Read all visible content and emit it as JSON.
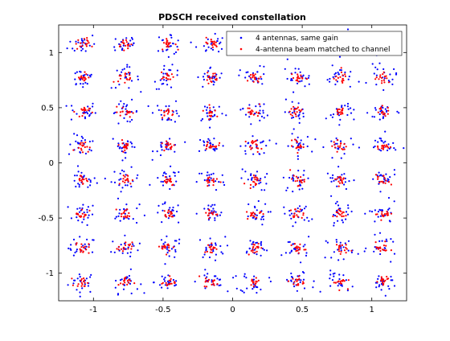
{
  "chart_data": {
    "type": "scatter",
    "title": "PDSCH received constellation",
    "xlabel": "",
    "ylabel": "",
    "xlim": [
      -1.25,
      1.25
    ],
    "ylim": [
      -1.25,
      1.25
    ],
    "xticks": [
      -1,
      -0.5,
      0,
      0.5,
      1
    ],
    "yticks": [
      -1,
      -0.5,
      0,
      0.5,
      1
    ],
    "xtick_labels": [
      "-1",
      "-0.5",
      "0",
      "0.5",
      "1"
    ],
    "ytick_labels": [
      "-1",
      "-0.5",
      "0",
      "0.5",
      "1"
    ],
    "grid": false,
    "legend_position": "top-right",
    "constellation": "64QAM",
    "constellation_levels": [
      -1.0801,
      -0.7715,
      -0.4629,
      -0.1543,
      0.1543,
      0.4629,
      0.7715,
      1.0801
    ],
    "series": [
      {
        "name": "4 antennas, same gain",
        "color": "#0000ff",
        "marker": "dot",
        "spread": 0.05,
        "points_per_symbol": 22
      },
      {
        "name": "4-antenna beam matched to channel",
        "color": "#ff0000",
        "marker": "dot",
        "spread": 0.025,
        "points_per_symbol": 16
      }
    ]
  }
}
